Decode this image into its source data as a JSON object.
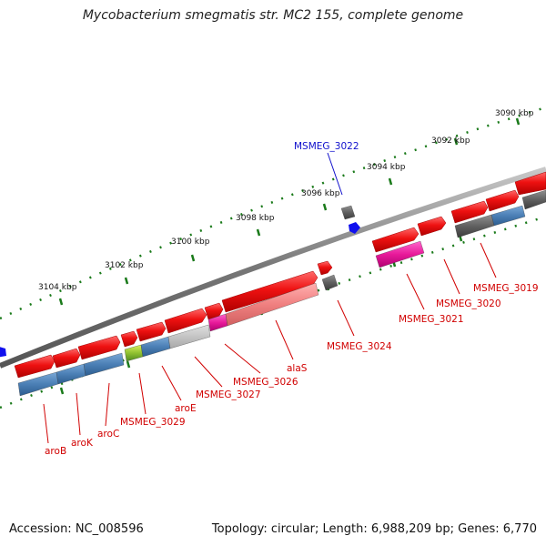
{
  "title": "Mycobacterium smegmatis str. MC2 155, complete genome",
  "footer": {
    "accession": "Accession: NC_008596",
    "summary": "Topology: circular; Length: 6,988,209 bp; Genes: 6,770"
  },
  "scale_labels": [
    "3090 kbp",
    "3092 kbp",
    "3094 kbp",
    "3096 kbp",
    "3098 kbp",
    "3100 kbp",
    "3102 kbp",
    "3104 kbp"
  ],
  "gene_labels": [
    {
      "text": "MSMEG_3022",
      "color": "#1010cc"
    },
    {
      "text": "MSMEG_3019",
      "color": "#d10000"
    },
    {
      "text": "MSMEG_3020",
      "color": "#d10000"
    },
    {
      "text": "MSMEG_3021",
      "color": "#d10000"
    },
    {
      "text": "MSMEG_3024",
      "color": "#d10000"
    },
    {
      "text": "alaS",
      "color": "#d10000"
    },
    {
      "text": "MSMEG_3026",
      "color": "#d10000"
    },
    {
      "text": "MSMEG_3027",
      "color": "#d10000"
    },
    {
      "text": "aroE",
      "color": "#d10000"
    },
    {
      "text": "MSMEG_3029",
      "color": "#d10000"
    },
    {
      "text": "aroC",
      "color": "#d10000"
    },
    {
      "text": "aroK",
      "color": "#d10000"
    },
    {
      "text": "aroB",
      "color": "#d10000"
    }
  ],
  "colors": {
    "cds_forward": "#ee1111",
    "gene_bar": "#4b7fb5",
    "backbone": "#888888",
    "tick": "#1a7a1a",
    "label_red": "#d10000",
    "label_blue": "#1010cc"
  }
}
